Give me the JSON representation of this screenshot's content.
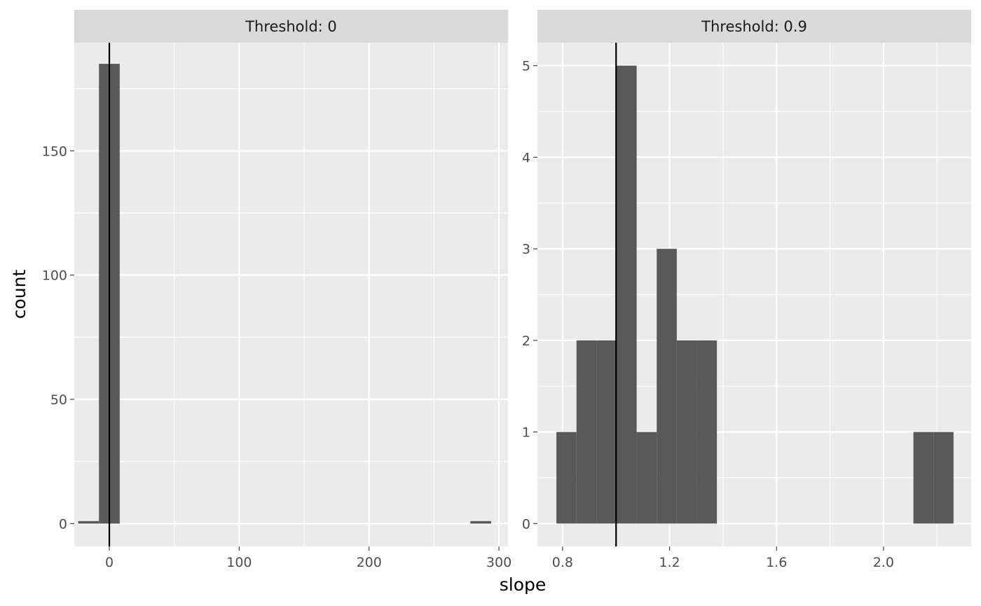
{
  "chart_data": {
    "type": "bar",
    "subtype": "faceted-histogram",
    "xlabel": "slope",
    "ylabel": "count",
    "grid": true,
    "legend": "none",
    "colors": {
      "bar": "#595959",
      "panel": "#ebebeb",
      "strip": "#d9d9d9",
      "grid": "#ffffff",
      "vline": "#000000",
      "tick_text": "#4d4d4d"
    },
    "facets": [
      {
        "strip": "Threshold: 0",
        "xlim": [
          -27,
          307
        ],
        "ylim": [
          -9.2,
          193.5
        ],
        "xticks": [
          0,
          100,
          200,
          300
        ],
        "xtick_labels": [
          "0",
          "100",
          "200",
          "300"
        ],
        "xminor": [
          50,
          150,
          250
        ],
        "yticks": [
          0,
          50,
          100,
          150
        ],
        "ytick_labels": [
          "0",
          "50",
          "100",
          "150"
        ],
        "yminor": [
          25,
          75,
          125,
          175
        ],
        "vline": 0,
        "bins": [
          {
            "x0": -24,
            "x1": -8,
            "count": 1
          },
          {
            "x0": -8,
            "x1": 8,
            "count": 185
          },
          {
            "x0": 278,
            "x1": 294,
            "count": 1
          }
        ]
      },
      {
        "strip": "Threshold: 0.9",
        "xlim": [
          0.706,
          2.328
        ],
        "ylim": [
          -0.25,
          5.25
        ],
        "xticks": [
          0.8,
          1.2,
          1.6,
          2.0
        ],
        "xtick_labels": [
          "0.8",
          "1.2",
          "1.6",
          "2.0"
        ],
        "xminor": [
          1.0,
          1.4,
          1.8,
          2.2
        ],
        "yticks": [
          0,
          1,
          2,
          3,
          4,
          5
        ],
        "ytick_labels": [
          "0",
          "1",
          "2",
          "3",
          "4",
          "5"
        ],
        "yminor": [
          0.5,
          1.5,
          2.5,
          3.5,
          4.5
        ],
        "vline": 1.0,
        "bins": [
          {
            "x0": 0.777,
            "x1": 0.852,
            "count": 1
          },
          {
            "x0": 0.852,
            "x1": 0.927,
            "count": 2
          },
          {
            "x0": 0.927,
            "x1": 1.002,
            "count": 2
          },
          {
            "x0": 1.002,
            "x1": 1.077,
            "count": 5
          },
          {
            "x0": 1.077,
            "x1": 1.152,
            "count": 1
          },
          {
            "x0": 1.152,
            "x1": 1.227,
            "count": 3
          },
          {
            "x0": 1.227,
            "x1": 1.302,
            "count": 2
          },
          {
            "x0": 1.302,
            "x1": 1.377,
            "count": 2
          },
          {
            "x0": 2.112,
            "x1": 2.187,
            "count": 1
          },
          {
            "x0": 2.187,
            "x1": 2.262,
            "count": 1
          }
        ]
      }
    ]
  }
}
